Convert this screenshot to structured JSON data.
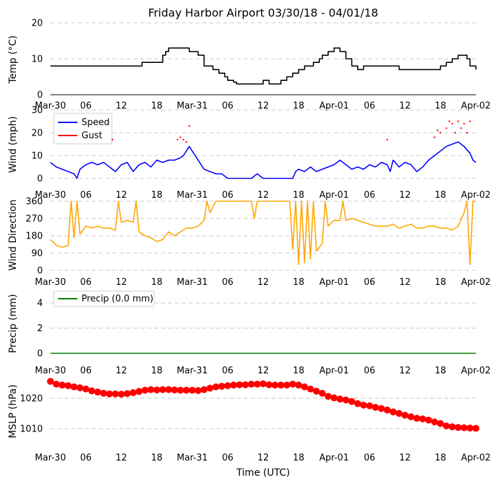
{
  "title": "Friday Harbor Airport 03/30/18 - 04/01/18",
  "xlabel": "Time (UTC)",
  "x_ticks": [
    "Mar-30",
    "06",
    "12",
    "18",
    "Mar-31",
    "06",
    "12",
    "18",
    "Apr-01",
    "06",
    "12",
    "18",
    "Apr-02"
  ],
  "x_range_hours": [
    0,
    72
  ],
  "chart_data": [
    {
      "type": "line",
      "ylabel": "Temp ($^\\circ$C)",
      "ylabel_display": "Temp (°C)",
      "ylim": [
        0,
        20
      ],
      "yticks": [
        0,
        10,
        20
      ],
      "grid": true,
      "step": true,
      "series": [
        {
          "color": "#000000",
          "points": [
            [
              0,
              8
            ],
            [
              4,
              8
            ],
            [
              10,
              8
            ],
            [
              15,
              8
            ],
            [
              15.5,
              9
            ],
            [
              18,
              9
            ],
            [
              19,
              11
            ],
            [
              19.5,
              12
            ],
            [
              20,
              13
            ],
            [
              23.5,
              13
            ],
            [
              23.5,
              12
            ],
            [
              25,
              11
            ],
            [
              26,
              8
            ],
            [
              27.5,
              7
            ],
            [
              28.5,
              6
            ],
            [
              29.5,
              5
            ],
            [
              30,
              4
            ],
            [
              31,
              3.5
            ],
            [
              31.5,
              3
            ],
            [
              32,
              3
            ],
            [
              35,
              3
            ],
            [
              36,
              4
            ],
            [
              37,
              3
            ],
            [
              38.5,
              3
            ],
            [
              39,
              4
            ],
            [
              40,
              5
            ],
            [
              41,
              6
            ],
            [
              42,
              7
            ],
            [
              43,
              8
            ],
            [
              44.5,
              9
            ],
            [
              45.5,
              10
            ],
            [
              46,
              11
            ],
            [
              47,
              12
            ],
            [
              48,
              13
            ],
            [
              49,
              12
            ],
            [
              50,
              10
            ],
            [
              51,
              8
            ],
            [
              52,
              7
            ],
            [
              53,
              8
            ],
            [
              58,
              8
            ],
            [
              59,
              7
            ],
            [
              65,
              7
            ],
            [
              66,
              8
            ],
            [
              67,
              9
            ],
            [
              68,
              10
            ],
            [
              69,
              11
            ],
            [
              70.5,
              10
            ],
            [
              71,
              8
            ],
            [
              72,
              7
            ]
          ]
        }
      ]
    },
    {
      "type": "line",
      "ylabel": "Wind (mph)",
      "ylim": [
        0,
        30
      ],
      "yticks": [
        0,
        10,
        20,
        30
      ],
      "grid": true,
      "legend": {
        "placement": "upper-left",
        "entries": [
          "Speed",
          "Gust"
        ]
      },
      "series": [
        {
          "name": "Speed",
          "color": "#0000ff",
          "style": "line",
          "points": [
            [
              0,
              7
            ],
            [
              1,
              5
            ],
            [
              2,
              4
            ],
            [
              3,
              3
            ],
            [
              4,
              2
            ],
            [
              4.5,
              0
            ],
            [
              5,
              4
            ],
            [
              6,
              6
            ],
            [
              7,
              7
            ],
            [
              8,
              6
            ],
            [
              9,
              7
            ],
            [
              10,
              5
            ],
            [
              11,
              3
            ],
            [
              12,
              6
            ],
            [
              13,
              7
            ],
            [
              14,
              3
            ],
            [
              15,
              6
            ],
            [
              16,
              7
            ],
            [
              17,
              5
            ],
            [
              18,
              8
            ],
            [
              19,
              7
            ],
            [
              20,
              8
            ],
            [
              21,
              8
            ],
            [
              22,
              9
            ],
            [
              22.5,
              10
            ],
            [
              23,
              12
            ],
            [
              23.5,
              14
            ],
            [
              24,
              12
            ],
            [
              25,
              8
            ],
            [
              26,
              4
            ],
            [
              27,
              3
            ],
            [
              28,
              2
            ],
            [
              29,
              2
            ],
            [
              30,
              0
            ],
            [
              34,
              0
            ],
            [
              35,
              2
            ],
            [
              36,
              0
            ],
            [
              41,
              0
            ],
            [
              41.5,
              3
            ],
            [
              42,
              4
            ],
            [
              43,
              3
            ],
            [
              44,
              5
            ],
            [
              45,
              3
            ],
            [
              46,
              4
            ],
            [
              47,
              5
            ],
            [
              48,
              6
            ],
            [
              48.5,
              7
            ],
            [
              49,
              8
            ],
            [
              50,
              6
            ],
            [
              51,
              4
            ],
            [
              52,
              5
            ],
            [
              53,
              4
            ],
            [
              54,
              6
            ],
            [
              55,
              5
            ],
            [
              56,
              7
            ],
            [
              57,
              6
            ],
            [
              57.5,
              3
            ],
            [
              58,
              8
            ],
            [
              59,
              5
            ],
            [
              60,
              7
            ],
            [
              61,
              6
            ],
            [
              62,
              3
            ],
            [
              63,
              5
            ],
            [
              64,
              8
            ],
            [
              65,
              10
            ],
            [
              66,
              12
            ],
            [
              67,
              14
            ],
            [
              68,
              15
            ],
            [
              69,
              16
            ],
            [
              70,
              14
            ],
            [
              71,
              11
            ],
            [
              71.5,
              8
            ],
            [
              72,
              7
            ]
          ]
        },
        {
          "name": "Gust",
          "color": "#ff0000",
          "style": "dots",
          "points": [
            [
              10.5,
              17
            ],
            [
              21.5,
              17
            ],
            [
              22,
              18
            ],
            [
              22.5,
              17
            ],
            [
              23,
              16
            ],
            [
              23.5,
              23
            ],
            [
              57,
              17
            ],
            [
              65,
              18
            ],
            [
              65.5,
              21
            ],
            [
              66,
              20
            ],
            [
              67,
              22
            ],
            [
              67.5,
              25
            ],
            [
              68,
              24
            ],
            [
              68.5,
              20
            ],
            [
              69,
              25
            ],
            [
              69.5,
              22
            ],
            [
              70,
              24
            ],
            [
              70.5,
              20
            ],
            [
              71,
              25
            ]
          ]
        }
      ]
    },
    {
      "type": "line",
      "ylabel": "Wind Direction",
      "ylim": [
        0,
        360
      ],
      "yticks": [
        0,
        90,
        180,
        270,
        360
      ],
      "grid": true,
      "series": [
        {
          "color": "#ffa500",
          "points": [
            [
              0,
              160
            ],
            [
              1,
              130
            ],
            [
              2,
              120
            ],
            [
              3,
              130
            ],
            [
              3.5,
              360
            ],
            [
              4,
              170
            ],
            [
              4.5,
              360
            ],
            [
              5,
              190
            ],
            [
              6,
              230
            ],
            [
              7,
              220
            ],
            [
              8,
              230
            ],
            [
              9,
              220
            ],
            [
              10,
              220
            ],
            [
              11,
              210
            ],
            [
              11.5,
              360
            ],
            [
              12,
              250
            ],
            [
              13,
              260
            ],
            [
              14,
              250
            ],
            [
              14.5,
              360
            ],
            [
              15,
              200
            ],
            [
              16,
              180
            ],
            [
              17,
              170
            ],
            [
              18,
              150
            ],
            [
              19,
              160
            ],
            [
              20,
              200
            ],
            [
              21,
              180
            ],
            [
              22,
              200
            ],
            [
              23,
              220
            ],
            [
              24,
              220
            ],
            [
              25,
              230
            ],
            [
              26,
              260
            ],
            [
              26.5,
              360
            ],
            [
              27,
              300
            ],
            [
              28,
              360
            ],
            [
              32,
              360
            ],
            [
              33,
              360
            ],
            [
              34,
              360
            ],
            [
              34.5,
              270
            ],
            [
              35,
              360
            ],
            [
              40,
              360
            ],
            [
              40.5,
              360
            ],
            [
              41,
              110
            ],
            [
              41.5,
              360
            ],
            [
              42,
              30
            ],
            [
              42.5,
              360
            ],
            [
              43,
              40
            ],
            [
              43.5,
              360
            ],
            [
              44,
              60
            ],
            [
              44.5,
              360
            ],
            [
              45,
              100
            ],
            [
              46,
              140
            ],
            [
              46.5,
              360
            ],
            [
              47,
              230
            ],
            [
              48,
              260
            ],
            [
              49,
              260
            ],
            [
              49.5,
              360
            ],
            [
              50,
              260
            ],
            [
              51,
              270
            ],
            [
              52,
              260
            ],
            [
              53,
              250
            ],
            [
              54,
              240
            ],
            [
              55,
              230
            ],
            [
              56,
              230
            ],
            [
              57,
              230
            ],
            [
              58,
              240
            ],
            [
              59,
              220
            ],
            [
              60,
              230
            ],
            [
              61,
              240
            ],
            [
              62,
              220
            ],
            [
              63,
              220
            ],
            [
              64,
              230
            ],
            [
              65,
              230
            ],
            [
              66,
              220
            ],
            [
              67,
              220
            ],
            [
              68,
              210
            ],
            [
              69,
              230
            ],
            [
              70,
              300
            ],
            [
              70.5,
              360
            ],
            [
              71,
              30
            ],
            [
              71.5,
              360
            ],
            [
              72,
              360
            ]
          ]
        }
      ]
    },
    {
      "type": "line",
      "ylabel": "Precip (mm)",
      "ylim": [
        0,
        5
      ],
      "yticks": [
        0,
        2,
        4
      ],
      "grid": true,
      "legend": {
        "placement": "upper-left",
        "entries": [
          "Precip (0.0 mm)"
        ]
      },
      "series": [
        {
          "name": "Precip (0.0 mm)",
          "color": "#008000",
          "points": [
            [
              0,
              0
            ],
            [
              72,
              0
            ]
          ]
        }
      ]
    },
    {
      "type": "scatter",
      "ylabel": "MSLP (hPa)",
      "ylim": [
        1005,
        1027
      ],
      "yticks": [
        1010,
        1020
      ],
      "grid": true,
      "series": [
        {
          "color": "#ff0000",
          "x": [
            0,
            1,
            2,
            3,
            4,
            5,
            6,
            7,
            8,
            9,
            10,
            11,
            12,
            13,
            14,
            15,
            16,
            17,
            18,
            19,
            20,
            21,
            22,
            23,
            24,
            25,
            26,
            27,
            28,
            29,
            30,
            31,
            32,
            33,
            34,
            35,
            36,
            37,
            38,
            39,
            40,
            41,
            42,
            43,
            44,
            45,
            46,
            47,
            48,
            49,
            50,
            51,
            52,
            53,
            54,
            55,
            56,
            57,
            58,
            59,
            60,
            61,
            62,
            63,
            64,
            65,
            66,
            67,
            68,
            69,
            70,
            71,
            72
          ],
          "y": [
            1025.5,
            1024.6,
            1024.3,
            1024.1,
            1023.7,
            1023.4,
            1023.0,
            1022.4,
            1022.0,
            1021.6,
            1021.4,
            1021.4,
            1021.3,
            1021.5,
            1021.8,
            1022.2,
            1022.6,
            1022.8,
            1022.7,
            1022.8,
            1022.8,
            1022.7,
            1022.6,
            1022.6,
            1022.6,
            1022.5,
            1022.8,
            1023.3,
            1023.7,
            1023.9,
            1024.1,
            1024.3,
            1024.4,
            1024.4,
            1024.6,
            1024.6,
            1024.7,
            1024.4,
            1024.3,
            1024.3,
            1024.3,
            1024.6,
            1024.3,
            1023.7,
            1023.0,
            1022.3,
            1021.6,
            1020.6,
            1020.1,
            1019.7,
            1019.4,
            1018.9,
            1018.2,
            1017.7,
            1017.5,
            1017.0,
            1016.6,
            1016.1,
            1015.5,
            1015.0,
            1014.4,
            1013.9,
            1013.4,
            1013.2,
            1012.8,
            1012.2,
            1011.7,
            1010.9,
            1010.6,
            1010.4,
            1010.3,
            1010.2,
            1010.1
          ]
        }
      ]
    }
  ]
}
